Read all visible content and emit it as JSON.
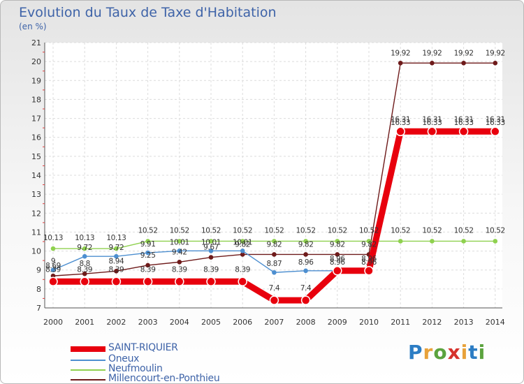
{
  "header": {
    "title": "Evolution du Taux de Taxe d'Habitation",
    "subtitle": "(en %)"
  },
  "logo": {
    "p": "P",
    "r": "r",
    "o": "o",
    "x": "x",
    "i": "i",
    "t": "t",
    "i2": "i"
  },
  "chart_data": {
    "type": "line",
    "x": [
      "2000",
      "2001",
      "2002",
      "2003",
      "2004",
      "2005",
      "2006",
      "2007",
      "2008",
      "2009",
      "2010",
      "2011",
      "2012",
      "2013",
      "2014"
    ],
    "ylim": [
      7,
      21
    ],
    "yticks": [
      "7",
      "8",
      "9",
      "10",
      "11",
      "12",
      "13",
      "14",
      "15",
      "16",
      "17",
      "18",
      "19",
      "20",
      "21"
    ],
    "grid": true,
    "series": [
      {
        "name": "SAINT-RIQUIER",
        "color": "#e8000d",
        "values": [
          8.39,
          8.39,
          8.39,
          8.39,
          8.39,
          8.39,
          8.39,
          7.4,
          7.4,
          8.96,
          8.96,
          16.31,
          16.31,
          16.31,
          16.31
        ],
        "labels": [
          "8.39",
          "8.39",
          "8.39",
          "8.39",
          "8.39",
          "8.39",
          "8.39",
          "7.4",
          "7.4",
          "8.96",
          "8.96",
          "16.31",
          "16.31",
          "16.31",
          "16.31"
        ]
      },
      {
        "name": "Oneux",
        "color": "#4d8fd0",
        "values": [
          9,
          9.72,
          9.72,
          9.91,
          10.01,
          10.01,
          10.01,
          8.87,
          8.96,
          8.96,
          8.96,
          16.33,
          16.33,
          16.33,
          16.33
        ],
        "labels": [
          "9",
          "9.72",
          "9.72",
          "9.91",
          "10.01",
          "10.01",
          "10.01",
          "8.87",
          "8.96",
          "8.96",
          "8.96",
          "16.33",
          "16.33",
          "16.33",
          "16.33"
        ]
      },
      {
        "name": "Neufmoulin",
        "color": "#8fd14f",
        "values": [
          10.13,
          10.13,
          10.13,
          10.52,
          10.52,
          10.52,
          10.52,
          10.52,
          10.52,
          10.52,
          10.52,
          10.52,
          10.52,
          10.52,
          10.52
        ],
        "labels": [
          "10.13",
          "10.13",
          "10.13",
          "10.52",
          "10.52",
          "10.52",
          "10.52",
          "10.52",
          "10.52",
          "10.52",
          "10.52",
          "10.52",
          "10.52",
          "10.52",
          "10.52"
        ]
      },
      {
        "name": "Millencourt-en-Ponthieu",
        "color": "#6e1a1a",
        "values": [
          8.69,
          8.8,
          8.94,
          9.25,
          9.42,
          9.67,
          9.82,
          9.82,
          9.82,
          9.82,
          9.82,
          19.92,
          19.92,
          19.92,
          19.92
        ],
        "labels": [
          "8.69",
          "8.8",
          "8.94",
          "9.25",
          "9.42",
          "9.67",
          "9.82",
          "9.82",
          "9.82",
          "9.82",
          "9.82",
          "19.92",
          "19.92",
          "19.92",
          "19.92"
        ]
      }
    ]
  }
}
